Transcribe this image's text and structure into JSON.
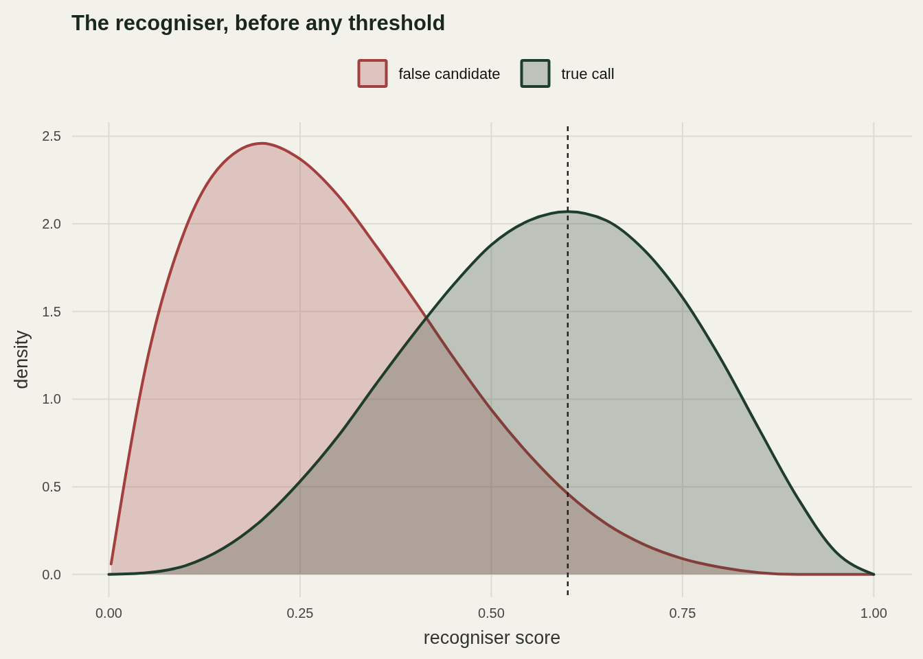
{
  "chart_data": {
    "type": "area",
    "title": "The recogniser, before any threshold",
    "xlabel": "recogniser score",
    "ylabel": "density",
    "xlim": [
      -0.048,
      1.05
    ],
    "ylim": [
      -0.13,
      2.58
    ],
    "xticks": [
      {
        "value": 0,
        "label": "0.00"
      },
      {
        "value": 0.25,
        "label": "0.25"
      },
      {
        "value": 0.5,
        "label": "0.50"
      },
      {
        "value": 0.75,
        "label": "0.75"
      },
      {
        "value": 1,
        "label": "1.00"
      }
    ],
    "yticks": [
      {
        "value": 0,
        "label": "0.0"
      },
      {
        "value": 0.5,
        "label": "0.5"
      },
      {
        "value": 1,
        "label": "1.0"
      },
      {
        "value": 1.5,
        "label": "1.5"
      },
      {
        "value": 2,
        "label": "2.0"
      },
      {
        "value": 2.5,
        "label": "2.5"
      }
    ],
    "grid": true,
    "legend": "top",
    "ref_lines": [
      {
        "axis": "x",
        "value": 0.6,
        "label": null,
        "color": "#222222",
        "line_style": "dashed"
      }
    ],
    "series": [
      {
        "name": "false candidate",
        "color": "#a33f3f",
        "x": [
          0.003,
          0.05,
          0.1,
          0.15,
          0.2,
          0.25,
          0.3,
          0.35,
          0.4,
          0.45,
          0.5,
          0.55,
          0.6,
          0.65,
          0.7,
          0.75,
          0.8,
          0.85,
          0.9,
          0.95,
          1
        ],
        "values": [
          0.06,
          1.22,
          1.97,
          2.35,
          2.46,
          2.37,
          2.16,
          1.87,
          1.56,
          1.24,
          0.94,
          0.68,
          0.46,
          0.29,
          0.17,
          0.09,
          0.04,
          0.01,
          0,
          0,
          0
        ]
      },
      {
        "name": "true call",
        "color": "#1e3d2d",
        "x": [
          0,
          0.05,
          0.1,
          0.15,
          0.2,
          0.25,
          0.3,
          0.35,
          0.4,
          0.45,
          0.5,
          0.55,
          0.6,
          0.65,
          0.7,
          0.75,
          0.8,
          0.85,
          0.9,
          0.95,
          1
        ],
        "values": [
          0,
          0.01,
          0.05,
          0.15,
          0.31,
          0.53,
          0.79,
          1.09,
          1.38,
          1.65,
          1.88,
          2.02,
          2.07,
          2.02,
          1.85,
          1.58,
          1.23,
          0.83,
          0.44,
          0.13,
          0
        ]
      }
    ]
  }
}
